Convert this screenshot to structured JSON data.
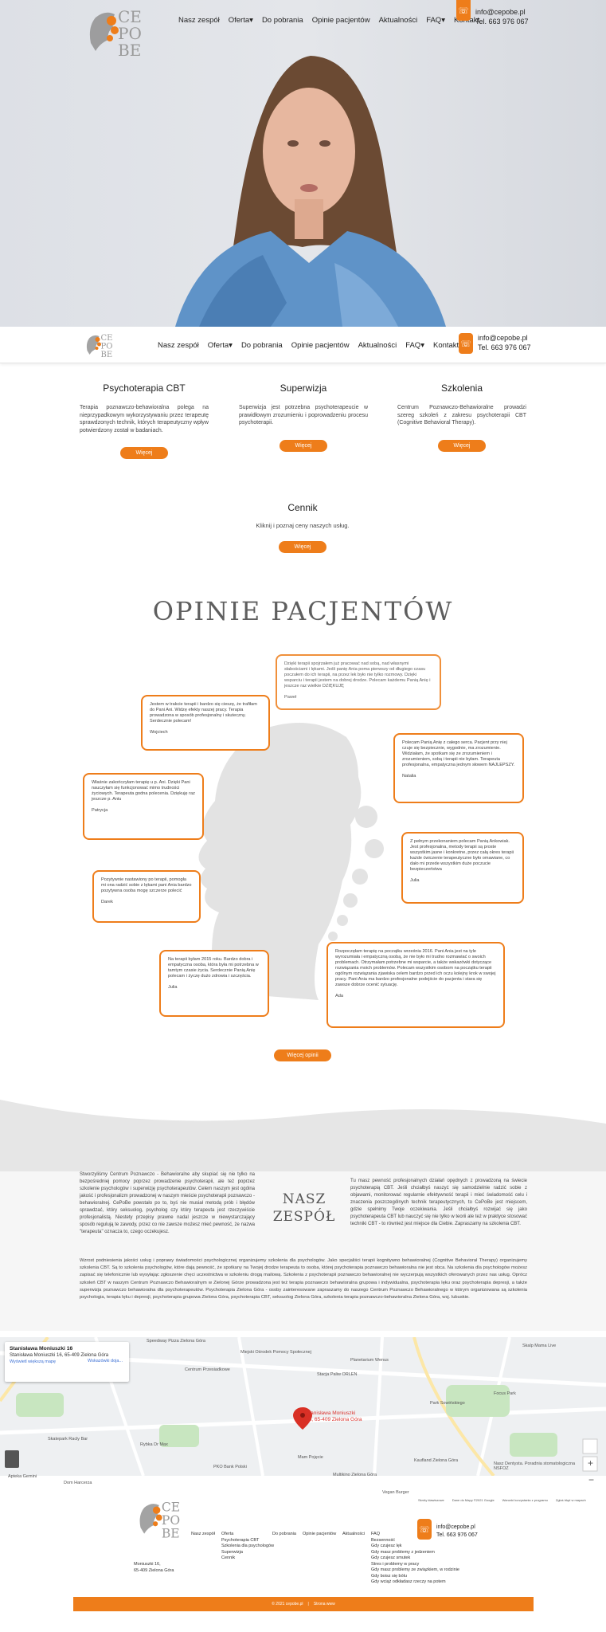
{
  "brand": {
    "logo_text": "CEPOBE"
  },
  "nav": {
    "items": [
      "Nasz zespół",
      "Oferta",
      "Do pobrania",
      "Opinie pacjentów",
      "Aktualności",
      "FAQ",
      "Kontakt"
    ]
  },
  "contact": {
    "email": "info@cepobe.pl",
    "phone": "Tel. 663 976 067"
  },
  "services": [
    {
      "title": "Psychoterapia CBT",
      "text": "Terapia poznawczo-behawioralna polega na nieprzypadkowym wykorzystywaniu przez terapeutę sprawdzonych technik, których terapeutyczny wpływ potwierdzony został w badaniach.",
      "button": "Więcej"
    },
    {
      "title": "Superwizja",
      "text": "Superwizja jest potrzebna psychoterapeucie w prawidłowym zrozumieniu i poprowadzeniu procesu psychoterapii.",
      "button": "Więcej"
    },
    {
      "title": "Szkolenia",
      "text": "Centrum Poznawczo-Behawioralne prowadzi szereg szkoleń z zakresu psychoterapii CBT (Cognitive Behavioral Therapy).",
      "button": "Więcej"
    }
  ],
  "pricing": {
    "title": "Cennik",
    "text": "Kliknij i poznaj ceny naszych usług.",
    "button": "Więcej"
  },
  "testimonials": {
    "title": "OPINIE PACJENTÓW",
    "items": [
      {
        "text": "Dzięki terapii spojrzałem już pracować nad sobą, nad własnymi słabościami i lękami. Jeśli panię Ania poma pierwszy od długiego czasu poczułem do ich terapii, na przez lek było nie tylko rozmowy. Dzięki wsparciu i terapii jestem na dobrej drodze. Polecam każdemu Panią Anię i jeszcze raz wielkie DZIĘKUJĘ",
        "author": "Paweł"
      },
      {
        "text": "Jestem w trakcie terapii i bardzo się cieszę, że trafiłam do Pani Ani. Widzę efekty naszej pracy. Terapia prowadzona w sposób profesjonalny i skuteczny. Serdecznie polecam!",
        "author": "Wojciech"
      },
      {
        "text": "Polecam Panią Anię z całego serca. Pacjent przy niej czuje się bezpiecznie, wygodnie, ma zrozumienie. Widziałam, że spotkam się ze zrozumieniem i zrozumieniem, sobą i terapii nie byłam. Terapeuta profesjonalna, empatyczna jednym słowem NAJLEPSZY.",
        "author": "Natalia"
      },
      {
        "text": "Właśnie zakończyłam terapię u p. Ani. Dzięki Pani nauczyłam się funkcjonować mimo trudności życiowych. Terapeuta godna polecenia. Dziękuję raz jeszcze p. Aniu",
        "author": "Patrycja"
      },
      {
        "text": "Z pełnym przekonaniem polecam Panią Ankowiak. Jest profesjonalna, metody terapii są proste wszystkim jasne i konkretne, przez całą okres terapii każde ćwiczenie terapeutyczne było omawiane, co dało mi przede wszystkim duże poczucie bezpieczeństwa",
        "author": "Julia"
      },
      {
        "text": "Pozytywnie nastawiony po terapii, pomogła mi ona radzić sobie z lękami pani Ania bardzo pozytywna osoba mogę szczerze polecić",
        "author": "Darek"
      },
      {
        "text": "Na terapii byłam 2015 roku. Bardzo dobra i empatyczna osoba, która była mi potrzebna w tamtym czasie życia. Serdecznie Panią Anię polecam i życzę dużo zdrowia i szczęścia.",
        "author": "Julia"
      },
      {
        "text": "Rozpoczęłam terapię na początku września 2016. Pani Ania jest na tyle wyrozumiała i empatyczną osobą, że nie było mi trudno rozmawiać o swoich problemach. Otrzymałam potrzebne mi wsparcie, a także wskazówki dotyczące rozwiązania moich problemów. Polecam wszystkim osobom na początku terapii ogólnym rozwiązania zjawiska celem bardzo przed ich oczu kolejny krok w swojej pracy. Pani Ania ma bardzo profesjonalne podejście do pacjenta i stara się zawsze dobrze ocenić sytuację.",
        "author": "Ada"
      }
    ],
    "button": "Więcej opinii"
  },
  "team": {
    "title_line1": "NASZ",
    "title_line2": "ZESPÓŁ",
    "left_text": "Stworzyliśmy Centrum Poznawczo - Behawioralne aby skupiać się nie tylko na bezpośredniej pomocy poprzez prowadzenie psychoterapii, ale też poprzez szkolenie psychologów i superwizję psychoterapeutów. Celem naszym jest ogólna jakość i profesjonalizm prowadzonej w naszym mieście psychoterapii poznawczo - behawioralnej. CePoBe powstało po to, byś nie musiał metodą prób i błędów sprawdzać, który seksuolog, psycholog czy który terapeuta jest rzeczywiście profesjonalistą. Niestety przepisy prawne nadal jeszcze w niewystarczający sposób regulują te zawody, przez co nie zawsze możesz mieć pewność, że nazwa \"terapeuta\" oznacza to, czego oczekujesz.",
    "right_text": "Tu masz pewność profesjonalnych działań opędnych z prowadzoną na świecie psychoterapią CBT. Jeśli chciałbyś naszyć się samodzielnie radzić sobie z objawami, monitorować regularnie efektywność terapii i mieć świadomość celu i znaczenia poszczególnych technik terapeutycznych, to CePoBe jest miejscem, gdzie spełnimy Twoje oczekiwania. Jeśli chciałbyś rozwijać się jako psychoterapeuta CBT lub nauczyć się nie tylko w teorii ale też w praktyce stosować techniki CBT - to również jest miejsce dla Ciebie. Zapraszamy na szkolenia CBT.",
    "full_text": "Wzrost podniesienia jakości usług i poprawy świadomości psychologicznej organizujemy szkolenia dla psychologów. Jako specjaliści terapii kognitywno behawioralnej (Cognitive Behavioral Therapy) organizujemy szkolenia CBT. Są to szkolenia psychologów, które dają pewność, że spotkany na Twojej drodze terapeuta to osoba, której psychoterapia poznawczo behawioralna nie jest obca. Na szkolenia dla psychologów możesz zapisać się telefonicznie lub wysyłając zgłoszenie chęci uczestnictwa w szkoleniu drogą mailową. Szkolenia z psychoterapii poznawczo behawioralnej nie wyczerpują wszystkich oferowanych przez nas usług. Oprócz szkoleń CBT w naszym Centrum Poznawczo Behawioralnym w Zielonej Górze prowadzona jest też terapia poznawczo behawioralna grupowa i indywidualna, psychoterapia lęku oraz psychoterapia depresji, a także superwizja poznawczo behawioralna dla psychoterapeutów. Psychoterapia Zielona Góra - osoby zainteresowane zapraszamy do naszego Centrum Poznawczo Behawioralnego w którym organizowana są szkolenia psychologia, terapia lęku i depresji, psychoterapia grupowa Zielona Góra, psychoterapia CBT, seksuolog Zielona Góra, szkolenia terapia poznawczo-behawioralna Zielona Góra, wsj. lubuskie."
  },
  "map": {
    "card_title": "Stanisława Moniuszki 16",
    "card_address": "Stanisława Moniuszki 16, 65-409 Zielona Góra",
    "card_link": "Wyświetl większą mapę",
    "directions": "Wskazówki doja...",
    "pin_label_line1": "Stanisława Moniuszki",
    "pin_label_line2": "16, 65-409 Zielona Góra",
    "places": [
      "Speedway Pizza Zielona Góra",
      "Miejski Ośrodek Pomocy Społecznej",
      "Centrum Przesiadkowe",
      "Planetarium Wenus",
      "Stacja Paliw ORLEN",
      "Park Sowińskiego",
      "Focus Park",
      "Skatepark Racły Bar",
      "Rybka Dr Max",
      "Mam Pojęcie",
      "PKO Bank Polski",
      "Multikino Zielona Góra",
      "Kaufland Zielona Góra",
      "Vegan Burger",
      "Nasz Dentysta. Poradnia stomatologiczna NSFOZ",
      "Apteka Gemini",
      "Dom Harcerza",
      "Skalp Mama Live"
    ],
    "footer": [
      "Skróty klawiszowe",
      "Dane do Mapy ©2021 Google",
      "Warunki korzystania z programu",
      "Zgłoś błąd w mapach"
    ]
  },
  "footer": {
    "address_line1": "Moniuszki 16,",
    "address_line2": "65-409 Zielona Góra",
    "col_team": "Nasz zespół",
    "col_offer": "Oferta",
    "offer_items": [
      "Psychoterapia CBT",
      "Szkolenia dla psychologów",
      "Superwizja",
      "Cennik"
    ],
    "col_download": "Do pobrania",
    "col_reviews": "Opinie pacjentów",
    "col_news": "Aktualności",
    "col_faq": "FAQ",
    "faq_items": [
      "Bezsenność",
      "Gdy czujesz lęk",
      "Gdy masz problemy z jedzeniem",
      "Gdy czujesz smutek",
      "Stres i problemy w pracy",
      "Gdy masz problemy ze związkiem, w rodzinie",
      "Gdy boisz się bólu",
      "Gdy wciąż odkładasz rzeczy na potem"
    ],
    "bar_text": "© 2021 cepobe.pl",
    "bar_link": "Strona www"
  },
  "colors": {
    "accent": "#ee7d1a",
    "text": "#333333"
  }
}
